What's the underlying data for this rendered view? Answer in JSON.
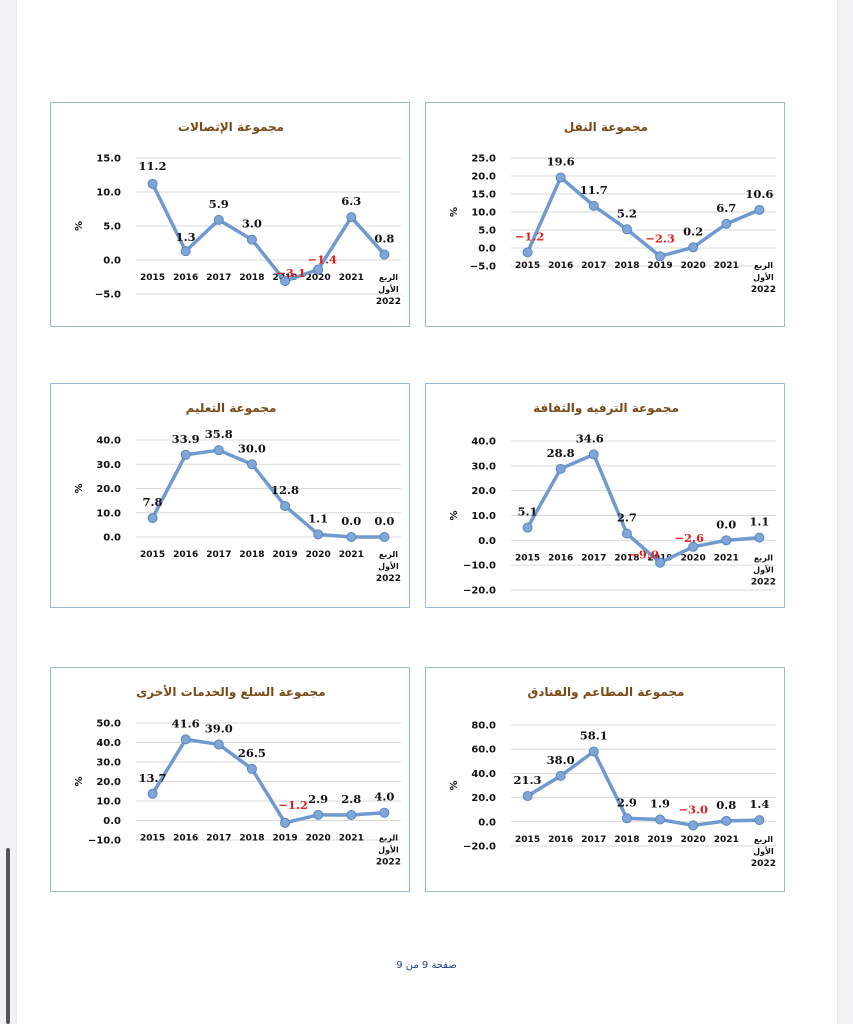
{
  "footer": "صفحة 9 من 9",
  "styles": {
    "line_color": "#6f9ad0",
    "marker_color": "#7ea6d8",
    "negative_label_color": "#e02020",
    "positive_label_color": "#111111",
    "title_color": "#7a4a17",
    "border_color": "#9db8d2"
  },
  "chart_data": [
    {
      "type": "line",
      "title": "مجموعة النقل",
      "ylabel": "%",
      "categories": [
        "2015",
        "2016",
        "2017",
        "2018",
        "2019",
        "2020",
        "2021",
        "الربع الأول 2022"
      ],
      "category_lines": [
        [
          "2015"
        ],
        [
          "2016"
        ],
        [
          "2017"
        ],
        [
          "2018"
        ],
        [
          "2019"
        ],
        [
          "2020"
        ],
        [
          "2021"
        ],
        [
          "الربع",
          "الأول",
          "2022"
        ]
      ],
      "values": [
        -1.2,
        19.6,
        11.7,
        5.2,
        -2.3,
        0.2,
        6.7,
        10.6
      ],
      "value_labels": [
        "-1.2",
        "19.6",
        "11.7",
        "5.2",
        "-2.3",
        "0.2",
        "6.7",
        "10.6"
      ],
      "yticks": [
        "-5.0",
        "0.0",
        "5.0",
        "10.0",
        "15.0",
        "20.0",
        "25.0"
      ],
      "ylim": [
        -5,
        25
      ]
    },
    {
      "type": "line",
      "title": "مجموعة الإتصالات",
      "ylabel": "%",
      "categories": [
        "2015",
        "2016",
        "2017",
        "2018",
        "2019",
        "2020",
        "2021",
        "الربع الأول 2022"
      ],
      "category_lines": [
        [
          "2015"
        ],
        [
          "2016"
        ],
        [
          "2017"
        ],
        [
          "2018"
        ],
        [
          "2019"
        ],
        [
          "2020"
        ],
        [
          "2021"
        ],
        [
          "الربع",
          "الأول",
          "2022"
        ]
      ],
      "values": [
        11.2,
        1.3,
        5.9,
        3.0,
        -3.1,
        -1.4,
        6.3,
        0.8
      ],
      "value_labels": [
        "11.2",
        "1.3",
        "5.9",
        "3.0",
        "-3.1",
        "-1.4",
        "6.3",
        "0.8"
      ],
      "yticks": [
        "-5.0",
        "0.0",
        "5.0",
        "10.0",
        "15.0"
      ],
      "ylim": [
        -5,
        15
      ]
    },
    {
      "type": "line",
      "title": "مجموعة الترفيه والثقافة",
      "ylabel": "%",
      "categories": [
        "2015",
        "2016",
        "2017",
        "2018",
        "2019",
        "2020",
        "2021",
        "الربع الأول 2022"
      ],
      "category_lines": [
        [
          "2015"
        ],
        [
          "2016"
        ],
        [
          "2017"
        ],
        [
          "2018"
        ],
        [
          "2019"
        ],
        [
          "2020"
        ],
        [
          "2021"
        ],
        [
          "الربع",
          "الأول",
          "2022"
        ]
      ],
      "values": [
        5.1,
        28.8,
        34.6,
        2.7,
        -9.0,
        -2.6,
        0.0,
        1.1
      ],
      "value_labels": [
        "5.1",
        "28.8",
        "34.6",
        "2.7",
        "-9.0",
        "-2.6",
        "0.0",
        "1.1"
      ],
      "yticks": [
        "-20.0",
        "-10.0",
        "0.0",
        "10.0",
        "20.0",
        "30.0",
        "40.0"
      ],
      "ylim": [
        -20,
        40
      ]
    },
    {
      "type": "line",
      "title": "مجموعة التعليم",
      "ylabel": "%",
      "categories": [
        "2015",
        "2016",
        "2017",
        "2018",
        "2019",
        "2020",
        "2021",
        "الربع الأول 2022"
      ],
      "category_lines": [
        [
          "2015"
        ],
        [
          "2016"
        ],
        [
          "2017"
        ],
        [
          "2018"
        ],
        [
          "2019"
        ],
        [
          "2020"
        ],
        [
          "2021"
        ],
        [
          "الربع",
          "الأول",
          "2022"
        ]
      ],
      "values": [
        7.8,
        33.9,
        35.8,
        30.0,
        12.8,
        1.1,
        0.0,
        0.0
      ],
      "value_labels": [
        "7.8",
        "33.9",
        "35.8",
        "30.0",
        "12.8",
        "1.1",
        "0.0",
        "0.0"
      ],
      "yticks": [
        "0.0",
        "10.0",
        "20.0",
        "30.0",
        "40.0"
      ],
      "ylim": [
        0,
        40
      ]
    },
    {
      "type": "line",
      "title": "مجموعة المطاعم والفنادق",
      "ylabel": "%",
      "categories": [
        "2015",
        "2016",
        "2017",
        "2018",
        "2019",
        "2020",
        "2021",
        "الربع الأول 2022"
      ],
      "category_lines": [
        [
          "2015"
        ],
        [
          "2016"
        ],
        [
          "2017"
        ],
        [
          "2018"
        ],
        [
          "2019"
        ],
        [
          "2020"
        ],
        [
          "2021"
        ],
        [
          "الربع",
          "الأول",
          "2022"
        ]
      ],
      "values": [
        21.3,
        38.0,
        58.1,
        2.9,
        1.9,
        -3.0,
        0.8,
        1.4
      ],
      "value_labels": [
        "21.3",
        "38.0",
        "58.1",
        "2.9",
        "1.9",
        "-3.0",
        "0.8",
        "1.4"
      ],
      "yticks": [
        "-20.0",
        "0.0",
        "20.0",
        "40.0",
        "60.0",
        "80.0"
      ],
      "ylim": [
        -20,
        80
      ]
    },
    {
      "type": "line",
      "title": "مجموعة السلع والخدمات الأخرى",
      "ylabel": "%",
      "categories": [
        "2015",
        "2016",
        "2017",
        "2018",
        "2019",
        "2020",
        "2021",
        "الربع الأول 2022"
      ],
      "category_lines": [
        [
          "2015"
        ],
        [
          "2016"
        ],
        [
          "2017"
        ],
        [
          "2018"
        ],
        [
          "2019"
        ],
        [
          "2020"
        ],
        [
          "2021"
        ],
        [
          "الربع",
          "الأول",
          "2022"
        ]
      ],
      "values": [
        13.7,
        41.6,
        39.0,
        26.5,
        -1.2,
        2.9,
        2.8,
        4.0
      ],
      "value_labels": [
        "13.7",
        "41.6",
        "39.0",
        "26.5",
        "-1.2",
        "2.9",
        "2.8",
        "4.0"
      ],
      "yticks": [
        "-10.0",
        "0.0",
        "10.0",
        "20.0",
        "30.0",
        "40.0",
        "50.0"
      ],
      "ylim": [
        -10,
        50
      ]
    }
  ]
}
